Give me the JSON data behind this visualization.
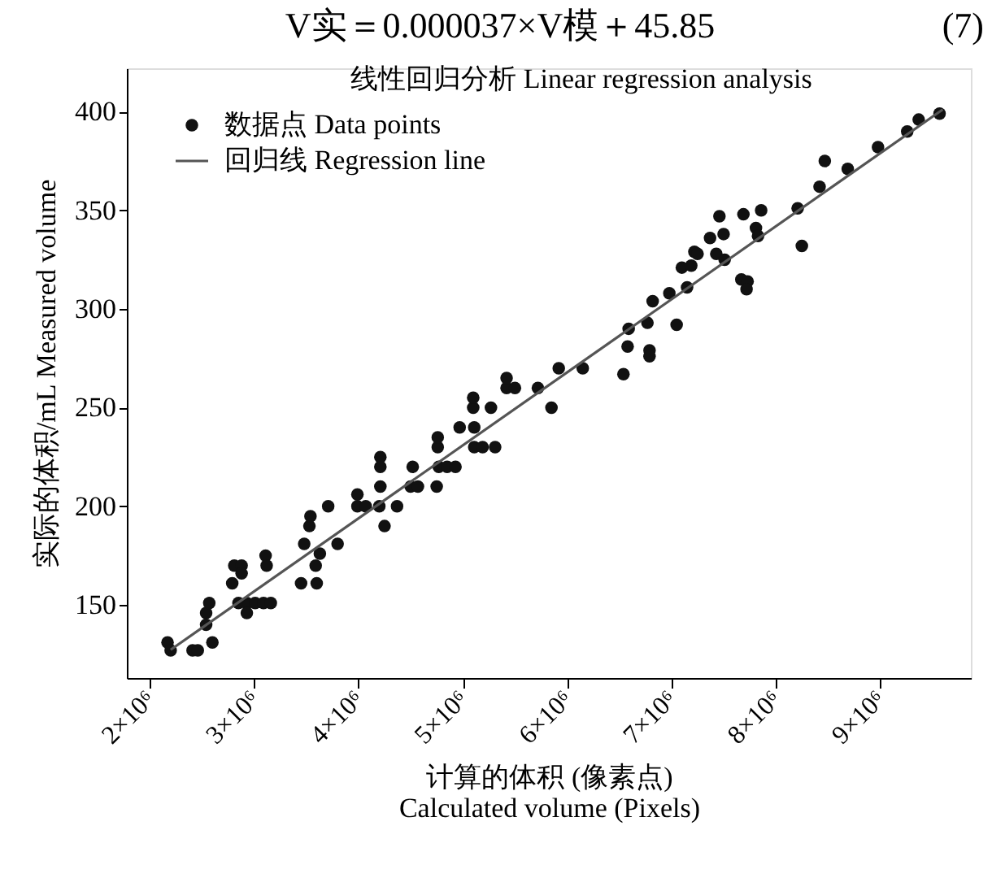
{
  "chart_data": {
    "type": "scatter",
    "title": "线性回归分析 Linear regression analysis",
    "annotations": [
      "V实＝0.000037×V模＋45.85",
      "(7)"
    ],
    "xlabel": "计算的体积 (像素点)\nCalculated volume (Pixels)",
    "ylabel": "实际的体积/mL Measured volume",
    "xlim": [
      1780000,
      9870000
    ],
    "ylim": [
      113,
      422
    ],
    "xticks": [
      {
        "value": 2000000,
        "label": "2×10⁶"
      },
      {
        "value": 3000000,
        "label": "3×10⁶"
      },
      {
        "value": 4000000,
        "label": "4×10⁶"
      },
      {
        "value": 5000000,
        "label": "5×10⁶"
      },
      {
        "value": 6000000,
        "label": "6×10⁶"
      },
      {
        "value": 7000000,
        "label": "7×10⁶"
      },
      {
        "value": 8000000,
        "label": "8×10⁶"
      },
      {
        "value": 9000000,
        "label": "9×10⁶"
      }
    ],
    "yticks": [
      150,
      200,
      250,
      300,
      350,
      400
    ],
    "grid": false,
    "legend": "top left",
    "series": [
      {
        "name": "数据点 Data points",
        "marker": "circle",
        "color": "#111111",
        "x": [
          2170000,
          2200000,
          2410000,
          2460000,
          2600000,
          2540000,
          2540000,
          2570000,
          2790000,
          2810000,
          2880000,
          2880000,
          2850000,
          2930000,
          3010000,
          3090000,
          3160000,
          2930000,
          3110000,
          3120000,
          3450000,
          3600000,
          3480000,
          3630000,
          3590000,
          3800000,
          3530000,
          3540000,
          3710000,
          3990000,
          3990000,
          4070000,
          4200000,
          4250000,
          4370000,
          4210000,
          4210000,
          4210000,
          4500000,
          4570000,
          4520000,
          4750000,
          4770000,
          4850000,
          4930000,
          4760000,
          4760000,
          4970000,
          5110000,
          5190000,
          5310000,
          5110000,
          5100000,
          5100000,
          5270000,
          5420000,
          5500000,
          5420000,
          5720000,
          5850000,
          5920000,
          6150000,
          6540000,
          6580000,
          6590000,
          6770000,
          6790000,
          6790000,
          6820000,
          6980000,
          7050000,
          7100000,
          7190000,
          7150000,
          7220000,
          7250000,
          7370000,
          7430000,
          7460000,
          7500000,
          7510000,
          7670000,
          7730000,
          7720000,
          7690000,
          7810000,
          7830000,
          7860000,
          8210000,
          8250000,
          8420000,
          8470000,
          8690000,
          8980000,
          9260000,
          9370000,
          9570000
        ],
        "values": [
          131,
          127,
          127,
          127,
          131,
          140,
          146,
          151,
          161,
          170,
          170,
          166,
          151,
          151,
          151,
          151,
          151,
          146,
          175,
          170,
          161,
          161,
          181,
          176,
          170,
          181,
          190,
          195,
          200,
          206,
          200,
          200,
          200,
          190,
          200,
          210,
          220,
          225,
          210,
          210,
          220,
          210,
          220,
          220,
          220,
          230,
          235,
          240,
          230,
          230,
          230,
          240,
          250,
          255,
          250,
          260,
          260,
          265,
          260,
          250,
          270,
          270,
          267,
          281,
          290,
          293,
          279,
          276,
          304,
          308,
          292,
          321,
          322,
          311,
          329,
          328,
          336,
          328,
          347,
          338,
          325,
          315,
          314,
          310,
          348,
          341,
          337,
          350,
          351,
          332,
          362,
          375,
          371,
          382,
          390,
          396,
          399
        ]
      },
      {
        "name": "回归线 Regression line",
        "type": "line",
        "line_style": "solid",
        "marker": "none",
        "color": "#555555",
        "x": [
          2200000,
          9600000
        ],
        "values": [
          127.3,
          401.1
        ]
      }
    ]
  }
}
